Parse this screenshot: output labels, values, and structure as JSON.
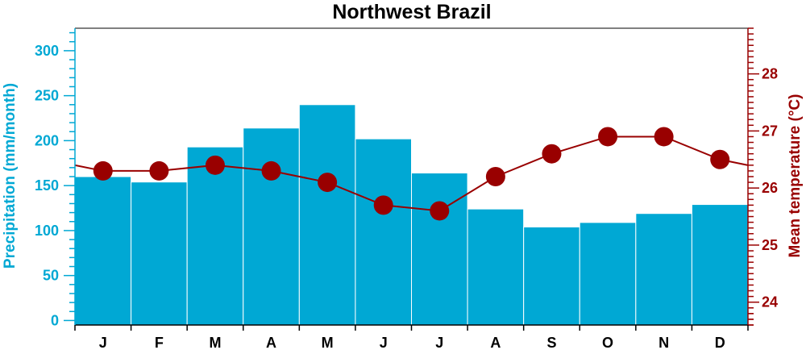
{
  "chart_data": {
    "type": "bar+line",
    "title": "Northwest Brazil",
    "categories": [
      "J",
      "F",
      "M",
      "A",
      "M",
      "J",
      "J",
      "A",
      "S",
      "O",
      "N",
      "D"
    ],
    "series": [
      {
        "name": "Precipitation",
        "kind": "bar",
        "axis": "left",
        "color": "#00A8D4",
        "values": [
          160,
          154,
          193,
          214,
          240,
          202,
          164,
          124,
          104,
          109,
          119,
          129
        ]
      },
      {
        "name": "Mean temperature",
        "kind": "line",
        "axis": "right",
        "color": "#990000",
        "values": [
          26.3,
          26.3,
          26.4,
          26.3,
          26.1,
          25.7,
          25.6,
          26.2,
          26.6,
          26.9,
          26.9,
          26.5
        ]
      }
    ],
    "ylabel_left": "Precipitation (mm/month)",
    "ylabel_right": "Mean temperature (°C)",
    "ylim_left": [
      -5,
      325
    ],
    "ylim_right": [
      23.6,
      28.8
    ],
    "yticks_left": [
      0,
      50,
      100,
      150,
      200,
      250,
      300
    ],
    "yticks_right": [
      24,
      25,
      26,
      27,
      28
    ],
    "grid": false,
    "legend": "none"
  }
}
